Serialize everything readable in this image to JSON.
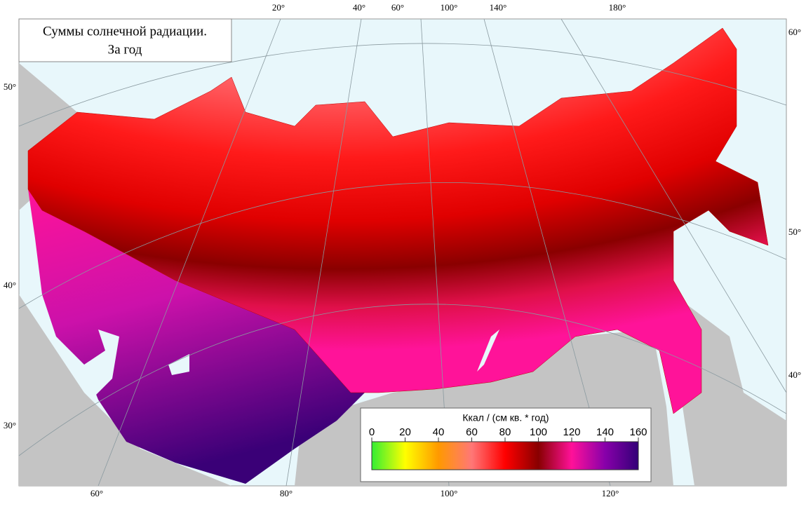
{
  "header": {
    "title_lines": [
      "Суммы солнечной радиации.",
      "За год"
    ]
  },
  "graticule": {
    "top": [
      "20°",
      "40°",
      "60°",
      "100°",
      "140°",
      "180°"
    ],
    "bottom": [
      "60°",
      "80°",
      "100°",
      "120°"
    ],
    "left": [
      "50°",
      "40°",
      "30°"
    ],
    "right": [
      "60°",
      "50°",
      "40°"
    ]
  },
  "legend": {
    "title": "Ккал / (см кв. * год)",
    "ticks": [
      0,
      20,
      40,
      60,
      80,
      100,
      120,
      140,
      160
    ],
    "colors": [
      "#33ee33",
      "#ffff00",
      "#ff9900",
      "#ff7777",
      "#ff0000",
      "#880000",
      "#ff1199",
      "#8800aa",
      "#330077"
    ]
  }
}
